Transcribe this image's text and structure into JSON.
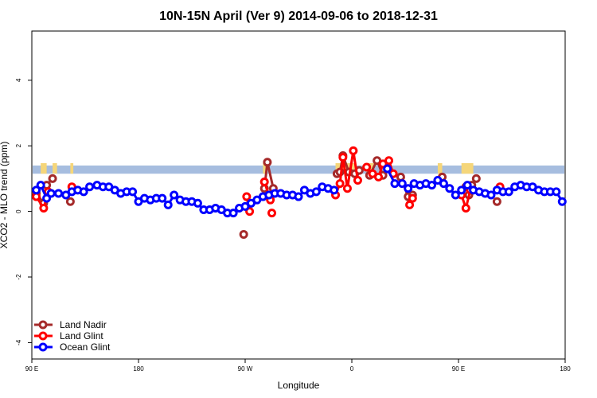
{
  "chart_data": {
    "type": "line",
    "title": "10N-15N April (Ver 9)   2014-09-06 to 2018-12-31",
    "xlabel": "Longitude",
    "ylabel": "XCO2 - MLO trend (ppm)",
    "xlim": [
      -90,
      270
    ],
    "ylim": [
      -4.5,
      5.5
    ],
    "x_ticks": [
      {
        "value": -90,
        "label": "90 E"
      },
      {
        "value": -18,
        "label": "180"
      },
      {
        "value": 54,
        "label": "90 W"
      },
      {
        "value": 126,
        "label": "0"
      },
      {
        "value": 198,
        "label": "90 E"
      },
      {
        "value": 270,
        "label": "180"
      }
    ],
    "y_ticks": [
      {
        "value": 4,
        "label": "4"
      },
      {
        "value": 2,
        "label": "2"
      },
      {
        "value": 0,
        "label": "0"
      },
      {
        "value": -2,
        "label": "-2"
      },
      {
        "value": -4,
        "label": "-4"
      }
    ],
    "land_band": {
      "y_range": [
        1.15,
        1.4
      ],
      "color": "#a6bddf",
      "highlight_color": "#f5d67a"
    },
    "legend_position": "bottom-left",
    "series": [
      {
        "name": "Land Nadir",
        "color": "#a52a2a",
        "segments": [
          [
            [
              -87,
              0.55
            ],
            [
              -82,
              0.25
            ],
            [
              -80,
              0.8
            ],
            [
              -76,
              1.0
            ]
          ],
          [
            [
              -64,
              0.3
            ]
          ],
          [
            [
              53,
              -0.7
            ]
          ],
          [
            [
              67,
              0.7
            ],
            [
              69,
              1.5
            ],
            [
              73,
              0.7
            ]
          ],
          [
            [
              116,
              1.15
            ],
            [
              118,
              1.2
            ],
            [
              120,
              1.7
            ],
            [
              124,
              1.2
            ],
            [
              128,
              1.15
            ],
            [
              131,
              1.25
            ]
          ],
          [
            [
              138,
              1.1
            ],
            [
              143,
              1.55
            ],
            [
              147,
              1.1
            ]
          ],
          [
            [
              159,
              1.05
            ],
            [
              164,
              0.45
            ],
            [
              167,
              0.5
            ]
          ],
          [
            [
              187,
              1.05
            ]
          ],
          [
            [
              203,
              0.75
            ],
            [
              205,
              0.5
            ],
            [
              207,
              0.8
            ],
            [
              210,
              1.0
            ]
          ],
          [
            [
              224,
              0.3
            ]
          ]
        ]
      },
      {
        "name": "Land Glint",
        "color": "#ff0000",
        "segments": [
          [
            [
              -87,
              0.45
            ],
            [
              -82,
              0.1
            ],
            [
              -79,
              0.6
            ]
          ],
          [
            [
              -63,
              0.75
            ]
          ],
          [
            [
              55,
              0.45
            ],
            [
              57,
              0.0
            ]
          ],
          [
            [
              67,
              0.9
            ],
            [
              71,
              0.35
            ]
          ],
          [
            [
              72,
              -0.05
            ]
          ],
          [
            [
              115,
              0.5
            ],
            [
              118,
              0.85
            ],
            [
              120,
              1.65
            ],
            [
              123,
              0.7
            ],
            [
              127,
              1.85
            ],
            [
              130,
              0.95
            ]
          ],
          [
            [
              136,
              1.35
            ],
            [
              140,
              1.15
            ],
            [
              144,
              1.05
            ],
            [
              147,
              1.45
            ],
            [
              151,
              1.55
            ],
            [
              154,
              1.15
            ]
          ],
          [
            [
              165,
              0.2
            ],
            [
              167,
              0.4
            ]
          ],
          [
            [
              200,
              0.5
            ],
            [
              203,
              0.1
            ],
            [
              206,
              0.65
            ]
          ],
          [
            [
              226,
              0.75
            ]
          ]
        ]
      },
      {
        "name": "Ocean Glint",
        "color": "#0000ff",
        "segments": [
          [
            [
              -87,
              0.65
            ],
            [
              -84,
              0.8
            ],
            [
              -80,
              0.4
            ],
            [
              -77,
              0.55
            ],
            [
              -72,
              0.55
            ],
            [
              -67,
              0.5
            ],
            [
              -63,
              0.6
            ],
            [
              -59,
              0.65
            ],
            [
              -55,
              0.6
            ],
            [
              -51,
              0.75
            ],
            [
              -46,
              0.8
            ],
            [
              -42,
              0.75
            ],
            [
              -38,
              0.75
            ],
            [
              -34,
              0.65
            ],
            [
              -30,
              0.55
            ],
            [
              -26,
              0.6
            ],
            [
              -22,
              0.6
            ],
            [
              -18,
              0.3
            ],
            [
              -14,
              0.4
            ],
            [
              -10,
              0.35
            ],
            [
              -6,
              0.4
            ],
            [
              -2,
              0.4
            ],
            [
              2,
              0.2
            ],
            [
              6,
              0.5
            ],
            [
              10,
              0.35
            ],
            [
              14,
              0.3
            ],
            [
              18,
              0.3
            ],
            [
              22,
              0.25
            ],
            [
              26,
              0.05
            ],
            [
              30,
              0.05
            ],
            [
              34,
              0.1
            ],
            [
              38,
              0.05
            ],
            [
              42,
              -0.05
            ],
            [
              46,
              -0.05
            ],
            [
              50,
              0.1
            ],
            [
              54,
              0.15
            ],
            [
              58,
              0.25
            ],
            [
              62,
              0.35
            ],
            [
              66,
              0.45
            ],
            [
              70,
              0.5
            ],
            [
              74,
              0.55
            ],
            [
              78,
              0.55
            ],
            [
              82,
              0.5
            ],
            [
              86,
              0.5
            ],
            [
              90,
              0.45
            ],
            [
              94,
              0.65
            ],
            [
              98,
              0.55
            ],
            [
              102,
              0.6
            ],
            [
              106,
              0.75
            ],
            [
              110,
              0.7
            ],
            [
              114,
              0.65
            ]
          ],
          [
            [
              150,
              1.3
            ],
            [
              155,
              0.85
            ],
            [
              160,
              0.85
            ],
            [
              164,
              0.7
            ],
            [
              168,
              0.85
            ],
            [
              172,
              0.8
            ],
            [
              176,
              0.85
            ],
            [
              180,
              0.8
            ],
            [
              184,
              0.95
            ],
            [
              188,
              0.85
            ],
            [
              192,
              0.7
            ],
            [
              196,
              0.5
            ],
            [
              200,
              0.65
            ],
            [
              204,
              0.8
            ],
            [
              208,
              0.65
            ],
            [
              212,
              0.6
            ],
            [
              216,
              0.55
            ],
            [
              220,
              0.5
            ],
            [
              224,
              0.65
            ],
            [
              228,
              0.6
            ],
            [
              232,
              0.6
            ],
            [
              236,
              0.75
            ],
            [
              240,
              0.8
            ],
            [
              244,
              0.75
            ],
            [
              248,
              0.75
            ],
            [
              252,
              0.65
            ],
            [
              256,
              0.6
            ],
            [
              260,
              0.6
            ],
            [
              264,
              0.6
            ],
            [
              268,
              0.3
            ]
          ]
        ]
      }
    ]
  }
}
